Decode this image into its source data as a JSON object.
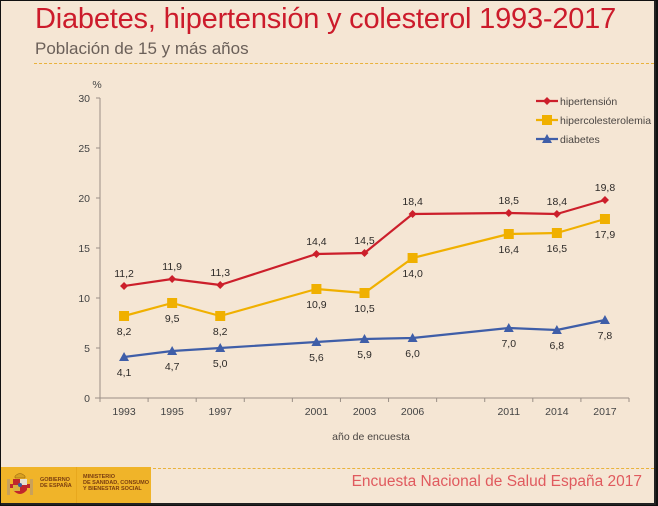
{
  "header": {
    "title": "Diabetes, hipertensión y colesterol 1993-2017",
    "subtitle": "Población de 15 y más años"
  },
  "footer": {
    "source": "Encuesta Nacional de Salud España 2017",
    "logo_gobierno": [
      "GOBIERNO",
      "DE ESPAÑA"
    ],
    "logo_ministerio": [
      "MINISTERIO",
      "DE SANIDAD, CONSUMO",
      "Y BIENESTAR SOCIAL"
    ]
  },
  "colors": {
    "hipertension": "#cc1f2b",
    "hipercolesterolemia": "#f0b000",
    "diabetes": "#3f5ea8",
    "axis": "#9a8f86",
    "brand_yellow": "#f0b429"
  },
  "chart_data": {
    "type": "line",
    "title": "Diabetes, hipertensión y colesterol 1993-2017",
    "subtitle": "Población de 15 y más años",
    "xlabel": "año de encuesta",
    "ylabel": "%",
    "ylim": [
      0,
      30
    ],
    "yticks": [
      0,
      5,
      10,
      15,
      20,
      25,
      30
    ],
    "x_slots": [
      "1993",
      "1995",
      "1997",
      "",
      "2001",
      "2003",
      "2006",
      "",
      "2011",
      "2014",
      "2017"
    ],
    "categories": [
      "1993",
      "1995",
      "1997",
      "2001",
      "2003",
      "2006",
      "2011",
      "2014",
      "2017"
    ],
    "legend_position": "top-right",
    "grid": false,
    "series": [
      {
        "name": "hipertensión",
        "marker": "diamond",
        "color": "#cc1f2b",
        "values": [
          11.2,
          11.9,
          11.3,
          14.4,
          14.5,
          18.4,
          18.5,
          18.4,
          19.8
        ],
        "labels": [
          "11,2",
          "11,9",
          "11,3",
          "14,4",
          "14,5",
          "18,4",
          "18,5",
          "18,4",
          "19,8"
        ],
        "label_side": [
          "above",
          "above",
          "above",
          "above",
          "above",
          "above",
          "above",
          "above",
          "above"
        ]
      },
      {
        "name": "hipercolesterolemia",
        "marker": "square",
        "color": "#f0b000",
        "values": [
          8.2,
          9.5,
          8.2,
          10.9,
          10.5,
          14.0,
          16.4,
          16.5,
          17.9
        ],
        "labels": [
          "8,2",
          "9,5",
          "8,2",
          "10,9",
          "10,5",
          "14,0",
          "16,4",
          "16,5",
          "17,9"
        ],
        "label_side": [
          "below",
          "below",
          "below",
          "below",
          "below",
          "below",
          "below",
          "below",
          "below"
        ]
      },
      {
        "name": "diabetes",
        "marker": "triangle",
        "color": "#3f5ea8",
        "values": [
          4.1,
          4.7,
          5.0,
          5.6,
          5.9,
          6.0,
          7.0,
          6.8,
          7.8
        ],
        "labels": [
          "4,1",
          "4,7",
          "5,0",
          "5,6",
          "5,9",
          "6,0",
          "7,0",
          "6,8",
          "7,8"
        ],
        "label_side": [
          "below",
          "below",
          "below",
          "below",
          "below",
          "below",
          "below",
          "below",
          "below"
        ]
      }
    ]
  }
}
